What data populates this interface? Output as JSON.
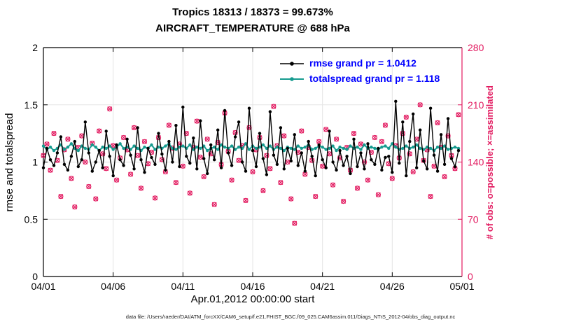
{
  "header": {
    "title_line1": "Tropics 18313 / 18373 = 99.673%",
    "title_line2": "AIRCRAFT_TEMPERATURE @ 688 hPa"
  },
  "footer": {
    "data_file_caption": "data file: /Users/raeder/DAI/ATM_forcXX/CAM6_setup/f.e21.FHIST_BGC.f09_025.CAM6assim.011/Diags_NTrS_2012-04/obs_diag_output.nc"
  },
  "chart_data": {
    "type": "line",
    "title": "Tropics 18313 / 18373 = 99.673%",
    "subtitle": "AIRCRAFT_TEMPERATURE @ 688 hPa",
    "xlabel": "Apr.01,2012 00:00:00 start",
    "ylabel_left": "rmse and totalspread",
    "ylabel_right": "# of obs: o=possible; ×=assimilated",
    "grid": true,
    "samples_per_day": 4,
    "x_span_days": 30,
    "x_ticks": {
      "positions_days": [
        0,
        5,
        10,
        15,
        20,
        25,
        30
      ],
      "labels": [
        "04/01",
        "04/06",
        "04/11",
        "04/16",
        "04/21",
        "04/26",
        "05/01"
      ]
    },
    "y_left": {
      "min": 0,
      "max": 2,
      "ticks": [
        0,
        0.5,
        1,
        1.5,
        2
      ],
      "tick_labels": [
        "0",
        "0.5",
        "1",
        "1.5",
        "2"
      ]
    },
    "y_right": {
      "min": 0,
      "max": 280,
      "ticks": [
        0,
        70,
        140,
        210,
        280
      ],
      "tick_labels": [
        "0",
        "70",
        "140",
        "210",
        "280"
      ],
      "color": "#e2195f"
    },
    "legend": {
      "position": "top-center-inside",
      "text_color": "#0000ff"
    },
    "series": [
      {
        "name": "rmse",
        "legend_label": "rmse grand pr = 1.0412",
        "color": "#000000",
        "axis": "left",
        "marker": "filled-circle",
        "values": [
          0.95,
          1.12,
          1.02,
          0.97,
          1.08,
          1.22,
          0.98,
          0.93,
          1.05,
          1.18,
          0.96,
          1.02,
          1.35,
          1.08,
          0.92,
          1.0,
          1.1,
          0.95,
          1.27,
          1.05,
          0.88,
          1.15,
          1.02,
          0.97,
          1.2,
          1.06,
          0.94,
          1.3,
          1.02,
          0.91,
          1.12,
          1.04,
          0.98,
          1.25,
          1.07,
          0.93,
          1.18,
          1.0,
          1.32,
          0.96,
          1.48,
          1.05,
          0.99,
          1.21,
          0.94,
          1.36,
          1.03,
          0.9,
          1.15,
          1.02,
          1.28,
          0.95,
          1.45,
          1.08,
          0.97,
          1.22,
          1.35,
          1.0,
          0.92,
          1.47,
          1.1,
          0.96,
          1.25,
          1.03,
          0.89,
          1.44,
          1.06,
          0.98,
          1.3,
          0.94,
          1.12,
          1.01,
          1.24,
          0.97,
          1.08,
          0.92,
          1.18,
          1.05,
          0.88,
          1.15,
          1.02,
          0.95,
          1.27,
          1.0,
          0.93,
          1.1,
          0.97,
          1.05,
          0.9,
          1.2,
          0.96,
          1.08,
          0.94,
          1.16,
          1.02,
          0.98,
          1.12,
          0.93,
          1.04,
          1.05,
          0.91,
          1.53,
          0.99,
          1.35,
          0.88,
          1.18,
          1.42,
          0.95,
          1.28,
          1.01,
          0.94,
          1.47,
          1.06,
          0.92,
          1.24,
          0.98,
          1.38,
          1.03,
          0.96,
          1.1
        ]
      },
      {
        "name": "totalspread",
        "legend_label": "totalspread grand pr = 1.118",
        "color": "#169b8f",
        "axis": "left",
        "marker": "filled-circle",
        "values": [
          1.14,
          1.11,
          1.13,
          1.1,
          1.12,
          1.15,
          1.11,
          1.13,
          1.16,
          1.12,
          1.1,
          1.14,
          1.12,
          1.11,
          1.15,
          1.13,
          1.1,
          1.13,
          1.12,
          1.14,
          1.11,
          1.13,
          1.16,
          1.12,
          1.13,
          1.11,
          1.14,
          1.12,
          1.1,
          1.13,
          1.12,
          1.15,
          1.11,
          1.13,
          1.12,
          1.14,
          1.16,
          1.12,
          1.11,
          1.13,
          1.14,
          1.12,
          1.15,
          1.11,
          1.13,
          1.12,
          1.14,
          1.1,
          1.12,
          1.13,
          1.11,
          1.15,
          1.13,
          1.12,
          1.14,
          1.11,
          1.13,
          1.12,
          1.16,
          1.11,
          1.14,
          1.12,
          1.13,
          1.15,
          1.12,
          1.14,
          1.11,
          1.13,
          1.12,
          1.1,
          1.13,
          1.12,
          1.11,
          1.14,
          1.12,
          1.13,
          1.15,
          1.11,
          1.12,
          1.14,
          1.13,
          1.11,
          1.12,
          1.14,
          1.1,
          1.13,
          1.12,
          1.11,
          1.14,
          1.12,
          1.13,
          1.11,
          1.15,
          1.12,
          1.13,
          1.12,
          1.11,
          1.13,
          1.14,
          1.12,
          1.16,
          1.13,
          1.11,
          1.12,
          1.14,
          1.12,
          1.13,
          1.15,
          1.12,
          1.11,
          1.13,
          1.12,
          1.1,
          1.13,
          1.12,
          1.14,
          1.11,
          1.12,
          1.13,
          1.12
        ]
      },
      {
        "name": "observation-count",
        "legend_label": "",
        "color": "#e2195f",
        "axis": "right",
        "marker": "circle-and-x-overlapped",
        "note": "o=possible and x=assimilated plotted at visually identical values (99.673% assimilated)",
        "values": [
          148,
          162,
          130,
          175,
          142,
          98,
          155,
          168,
          120,
          85,
          158,
          172,
          140,
          110,
          163,
          95,
          178,
          150,
          132,
          205,
          160,
          118,
          145,
          170,
          155,
          125,
          182,
          148,
          108,
          165,
          138,
          152,
          96,
          170,
          143,
          128,
          185,
          157,
          115,
          162,
          135,
          175,
          102,
          158,
          190,
          146,
          122,
          168,
          150,
          88,
          164,
          137,
          200,
          153,
          118,
          176,
          142,
          160,
          93,
          182,
          128,
          155,
          170,
          105,
          148,
          132,
          208,
          160,
          115,
          172,
          140,
          95,
          65,
          152,
          178,
          125,
          158,
          142,
          98,
          165,
          135,
          180,
          150,
          112,
          168,
          145,
          92,
          158,
          130,
          175,
          108,
          162,
          140,
          118,
          152,
          170,
          100,
          165,
          185,
          138,
          120,
          160,
          145,
          175,
          195,
          150,
          128,
          168,
          210,
          142,
          155,
          98,
          135,
          188,
          158,
          122,
          172,
          148,
          132,
          198
        ]
      }
    ]
  }
}
